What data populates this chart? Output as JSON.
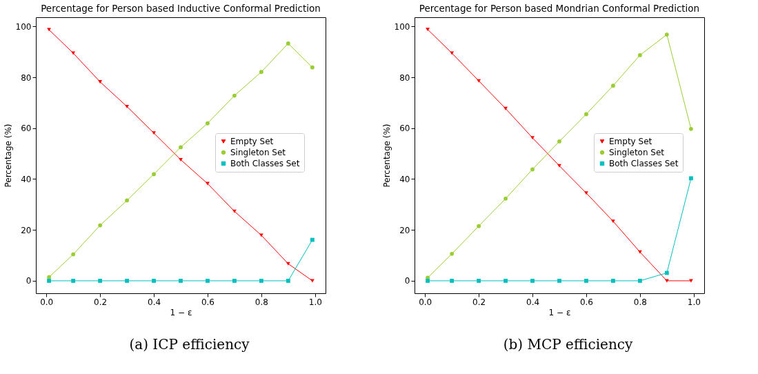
{
  "chart_data": [
    {
      "type": "line",
      "title": "Percentage for Person based Inductive Conformal Prediction",
      "xlabel": "1 − ε",
      "ylabel": "Percentage (%)",
      "annotations": [
        "(a) ICP efficiency"
      ],
      "x": [
        0.01,
        0.1,
        0.2,
        0.3,
        0.4,
        0.5,
        0.6,
        0.7,
        0.8,
        0.9,
        0.99
      ],
      "series": [
        {
          "name": "Empty Set",
          "color": "#ff0000",
          "marker": "triangle",
          "values": [
            98.7,
            89.5,
            78.2,
            68.5,
            58.1,
            47.6,
            38.2,
            27.3,
            17.9,
            6.7,
            0
          ]
        },
        {
          "name": "Singleton Set",
          "color": "#9acd32",
          "marker": "circle",
          "values": [
            1.4,
            10.4,
            21.8,
            31.6,
            41.9,
            52.5,
            61.9,
            72.8,
            82.1,
            93.3,
            83.9
          ]
        },
        {
          "name": "Both Classes Set",
          "color": "#00bfbf",
          "marker": "square",
          "values": [
            0,
            0,
            0,
            0,
            0,
            0,
            0,
            0,
            0,
            0,
            16.1
          ]
        }
      ],
      "xlim": [
        -0.039,
        1.039
      ],
      "xticks": [
        {
          "value": 0,
          "label": "0.0"
        },
        {
          "value": 0.2,
          "label": "0.2"
        },
        {
          "value": 0.4,
          "label": "0.4"
        },
        {
          "value": 0.6,
          "label": "0.6"
        },
        {
          "value": 0.8,
          "label": "0.8"
        },
        {
          "value": 1,
          "label": "1.0"
        }
      ],
      "ylim": [
        -4.9,
        103.6
      ],
      "yticks": [
        0,
        20,
        40,
        60,
        80,
        100
      ],
      "grid": false,
      "legend": "right"
    },
    {
      "type": "line",
      "title": "Percentage for Person based Mondrian Conformal Prediction",
      "xlabel": "1 − ε",
      "ylabel": "Percentage (%)",
      "annotations": [
        "(b) MCP efficiency"
      ],
      "x": [
        0.01,
        0.1,
        0.2,
        0.3,
        0.4,
        0.5,
        0.6,
        0.7,
        0.8,
        0.9,
        0.99
      ],
      "series": [
        {
          "name": "Empty Set",
          "color": "#ff0000",
          "marker": "triangle",
          "values": [
            98.8,
            89.5,
            78.6,
            67.7,
            56.2,
            45.2,
            34.5,
            23.4,
            11.3,
            0,
            0
          ]
        },
        {
          "name": "Singleton Set",
          "color": "#9acd32",
          "marker": "circle",
          "values": [
            1.2,
            10.6,
            21.5,
            32.3,
            43.8,
            54.8,
            65.5,
            76.7,
            88.7,
            96.8,
            59.7
          ]
        },
        {
          "name": "Both Classes Set",
          "color": "#00bfbf",
          "marker": "square",
          "values": [
            0,
            0,
            0,
            0,
            0,
            0,
            0,
            0,
            0,
            3.1,
            40.3
          ]
        }
      ],
      "xlim": [
        -0.039,
        1.039
      ],
      "xticks": [
        {
          "value": 0,
          "label": "0.0"
        },
        {
          "value": 0.2,
          "label": "0.2"
        },
        {
          "value": 0.4,
          "label": "0.4"
        },
        {
          "value": 0.6,
          "label": "0.6"
        },
        {
          "value": 0.8,
          "label": "0.8"
        },
        {
          "value": 1,
          "label": "1.0"
        }
      ],
      "ylim": [
        -4.9,
        103.6
      ],
      "yticks": [
        0,
        20,
        40,
        60,
        80,
        100
      ],
      "grid": false,
      "legend": "right"
    }
  ]
}
